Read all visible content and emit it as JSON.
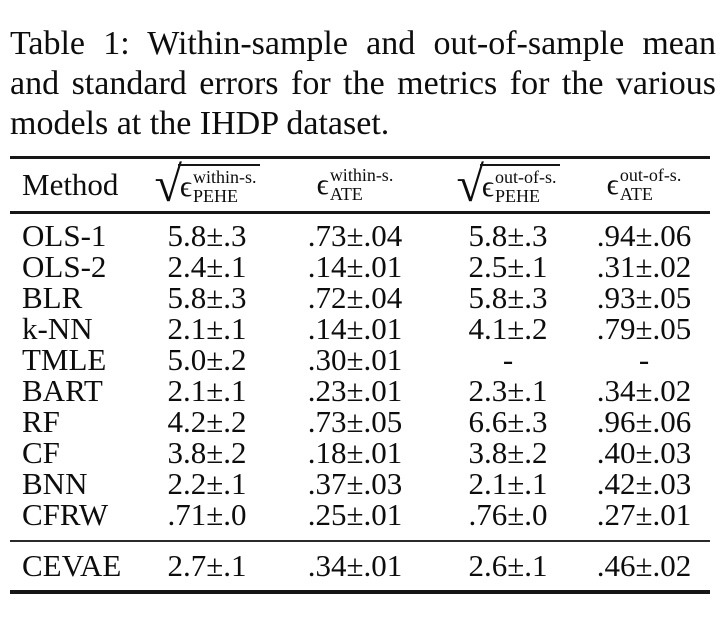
{
  "caption": {
    "line1": "Table 1: Within-sample and out-of-sample mean",
    "line2": "and standard errors for the metrics for the various",
    "line3": "models at the IHDP dataset."
  },
  "table": {
    "sqrt_symbol": "√",
    "headers": [
      {
        "label": "Method"
      },
      {
        "symbol": "ϵ",
        "sup": "within-s.",
        "sub": "PEHE",
        "sqrt": true
      },
      {
        "symbol": "ϵ",
        "sup": "within-s.",
        "sub": "ATE",
        "sqrt": false
      },
      {
        "symbol": "ϵ",
        "sup": "out-of-s.",
        "sub": "PEHE",
        "sqrt": true
      },
      {
        "symbol": "ϵ",
        "sup": "out-of-s.",
        "sub": "ATE",
        "sqrt": false
      }
    ],
    "rows": [
      {
        "method": "OLS-1",
        "values": [
          "5.8±.3",
          ".73±.04",
          "5.8±.3",
          ".94±.06"
        ]
      },
      {
        "method": "OLS-2",
        "values": [
          "2.4±.1",
          ".14±.01",
          "2.5±.1",
          ".31±.02"
        ]
      },
      {
        "method": "BLR",
        "values": [
          "5.8±.3",
          ".72±.04",
          "5.8±.3",
          ".93±.05"
        ]
      },
      {
        "method": "k-NN",
        "values": [
          "2.1±.1",
          ".14±.01",
          "4.1±.2",
          ".79±.05"
        ]
      },
      {
        "method": "TMLE",
        "values": [
          "5.0±.2",
          ".30±.01",
          "-",
          "-"
        ]
      },
      {
        "method": "BART",
        "values": [
          "2.1±.1",
          ".23±.01",
          "2.3±.1",
          ".34±.02"
        ]
      },
      {
        "method": "RF",
        "values": [
          "4.2±.2",
          ".73±.05",
          "6.6±.3",
          ".96±.06"
        ]
      },
      {
        "method": "CF",
        "values": [
          "3.8±.2",
          ".18±.01",
          "3.8±.2",
          ".40±.03"
        ]
      },
      {
        "method": "BNN",
        "values": [
          "2.2±.1",
          ".37±.03",
          "2.1±.1",
          ".42±.03"
        ]
      },
      {
        "method": "CFRW",
        "values": [
          ".71±.0",
          ".25±.01",
          ".76±.0",
          ".27±.01"
        ]
      }
    ],
    "footer_rows": [
      {
        "method": "CEVAE",
        "values": [
          "2.7±.1",
          ".34±.01",
          "2.6±.1",
          ".46±.02"
        ]
      }
    ]
  },
  "colors": {
    "background": "#ffffff",
    "text": "#0d0d0d",
    "rule": "#161616"
  }
}
